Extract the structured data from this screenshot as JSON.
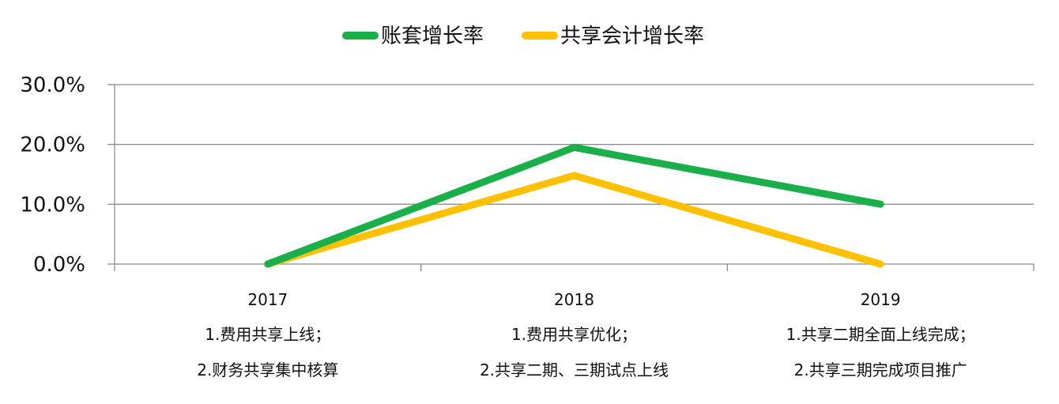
{
  "chart_data": {
    "type": "line",
    "categories": [
      "2017",
      "2018",
      "2019"
    ],
    "category_notes": [
      [
        "1.费用共享上线；",
        "2.财务共享集中核算"
      ],
      [
        "1.费用共享优化；",
        "2.共享二期、三期试点上线"
      ],
      [
        "1.共享二期全面上线完成；",
        "2.共享三期完成项目推广"
      ]
    ],
    "series": [
      {
        "name": "账套增长率",
        "values": [
          0.0,
          19.5,
          10.0
        ],
        "color": "#1aaf4b"
      },
      {
        "name": "共享会计增长率",
        "values": [
          0.0,
          14.8,
          0.0
        ],
        "color": "#ffc000"
      }
    ],
    "yticks": [
      "0.0%",
      "10.0%",
      "20.0%",
      "30.0%"
    ],
    "ylim": [
      0,
      30
    ],
    "grid": true,
    "legend_position": "top-center",
    "xlabel": "",
    "ylabel": ""
  }
}
